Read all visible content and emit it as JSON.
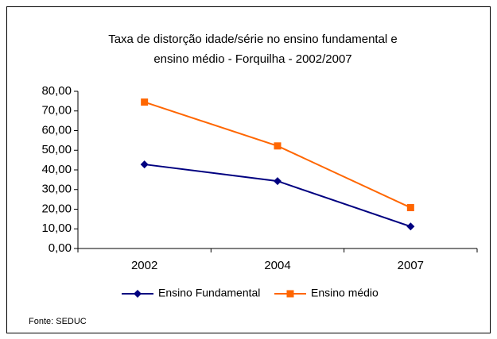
{
  "chart_data": {
    "type": "line",
    "title": [
      "Taxa de distorção idade/série no ensino fundamental e",
      "ensino médio - Forquilha -  2002/2007"
    ],
    "categories": [
      "2002",
      "2004",
      "2007"
    ],
    "series": [
      {
        "name": "Ensino Fundamental",
        "color": "#000080",
        "marker": "diamond",
        "values": [
          42.8,
          34.3,
          11.2
        ]
      },
      {
        "name": "Ensino médio",
        "color": "#ff6600",
        "marker": "square",
        "values": [
          74.5,
          52.2,
          20.8
        ]
      }
    ],
    "ylim": [
      0,
      80
    ],
    "yticks": [
      {
        "value": 0,
        "label": "0,00"
      },
      {
        "value": 10,
        "label": "10,00"
      },
      {
        "value": 20,
        "label": "20,00"
      },
      {
        "value": 30,
        "label": "30,00"
      },
      {
        "value": 40,
        "label": "40,00"
      },
      {
        "value": 50,
        "label": "50,00"
      },
      {
        "value": 60,
        "label": "60,00"
      },
      {
        "value": 70,
        "label": "70,00"
      },
      {
        "value": 80,
        "label": "80,00"
      }
    ],
    "legend": "bottom",
    "source": "Fonte: SEDUC"
  }
}
